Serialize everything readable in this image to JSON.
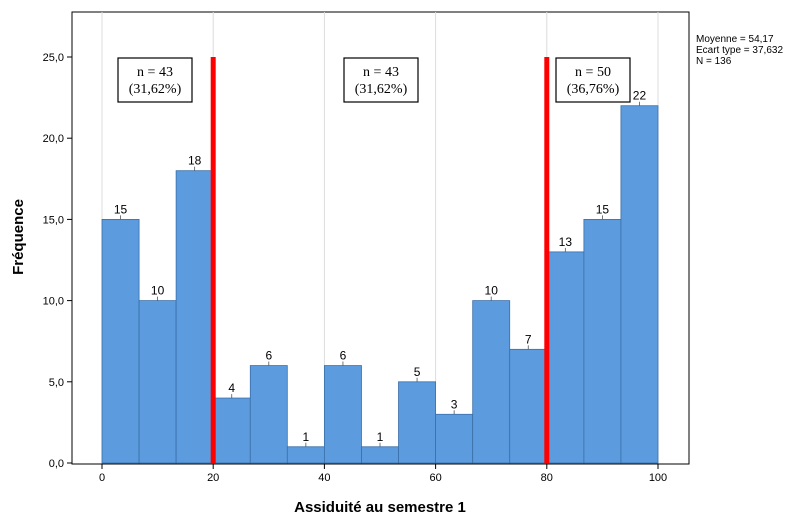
{
  "colors": {
    "bar": "#5b9bde",
    "bar_stroke": "#3b6fa8",
    "cut_line": "#ff0000",
    "axis": "#000000",
    "gridline": "#dcdcdc"
  },
  "stats": {
    "mean": "Moyenne = 54,17",
    "std": "Ecart type = 37,632",
    "n": "N = 136"
  },
  "annotations": [
    {
      "count": "n = 43",
      "percent": "(31,62%)"
    },
    {
      "count": "n = 43",
      "percent": "(31,62%)"
    },
    {
      "count": "n = 50",
      "percent": "(36,76%)"
    }
  ],
  "chart_data": {
    "type": "bar",
    "title": "",
    "xlabel": "Assiduité au semestre 1",
    "ylabel": "Fréquence",
    "xlim": [
      0,
      100
    ],
    "ylim": [
      0,
      25
    ],
    "x_ticks": [
      0,
      20,
      40,
      60,
      80,
      100
    ],
    "x_tick_labels": [
      "0",
      "20",
      "40",
      "60",
      "80",
      "100"
    ],
    "y_ticks": [
      0,
      5,
      10,
      15,
      20,
      25
    ],
    "y_tick_labels": [
      "0,0",
      "5,0",
      "10,0",
      "15,0",
      "20,0",
      "25,0"
    ],
    "vertical_gridlines": [
      0,
      20,
      40,
      60,
      80,
      100
    ],
    "bins": [
      {
        "from": 0,
        "to": 6.67,
        "count": 15,
        "label": "15"
      },
      {
        "from": 6.67,
        "to": 13.33,
        "count": 10,
        "label": "10"
      },
      {
        "from": 13.33,
        "to": 20,
        "count": 18,
        "label": "18"
      },
      {
        "from": 20,
        "to": 26.67,
        "count": 4,
        "label": "4"
      },
      {
        "from": 26.67,
        "to": 33.33,
        "count": 6,
        "label": "6"
      },
      {
        "from": 33.33,
        "to": 40,
        "count": 1,
        "label": "1"
      },
      {
        "from": 40,
        "to": 46.67,
        "count": 6,
        "label": "6"
      },
      {
        "from": 46.67,
        "to": 53.33,
        "count": 1,
        "label": "1"
      },
      {
        "from": 53.33,
        "to": 60,
        "count": 5,
        "label": "5"
      },
      {
        "from": 60,
        "to": 66.67,
        "count": 3,
        "label": "3"
      },
      {
        "from": 66.67,
        "to": 73.33,
        "count": 10,
        "label": "10"
      },
      {
        "from": 73.33,
        "to": 80,
        "count": 7,
        "label": "7"
      },
      {
        "from": 80,
        "to": 86.67,
        "count": 13,
        "label": "13"
      },
      {
        "from": 86.67,
        "to": 93.33,
        "count": 15,
        "label": "15"
      },
      {
        "from": 93.33,
        "to": 100,
        "count": 22,
        "label": "22"
      }
    ],
    "reference_lines": [
      20,
      80
    ]
  }
}
